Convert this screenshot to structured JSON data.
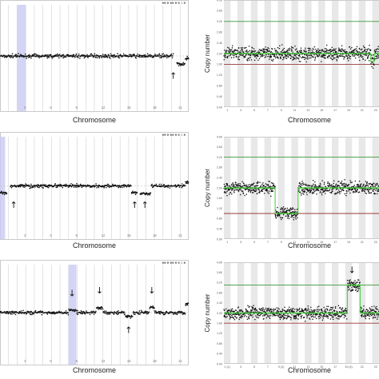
{
  "colors": {
    "grid": "#cfcfcf",
    "band": "#e8e8e8",
    "highlight": "#c9c9f2",
    "points": "#111111",
    "fit": "#3ad12f",
    "upper": "#3a9a3a",
    "lower": "#9a3a3a"
  },
  "chart_data": [
    {
      "type": "scatter",
      "panel": "top-left",
      "xlabel": "Chromosome",
      "corner_text": "■■ ■ ■■ ■ ■ 1 ■",
      "ylim": [
        0,
        4
      ],
      "baseline": 2,
      "chromosomes": 22,
      "highlight": [
        2,
        3
      ],
      "segments": [
        {
          "from": 0,
          "to": 20.2,
          "value": 2.0
        },
        {
          "from": 20.6,
          "to": 21.6,
          "value": 1.72
        },
        {
          "from": 21.6,
          "to": 22,
          "value": 1.9
        }
      ],
      "annotations": [
        {
          "glyph": "↑",
          "x": 20.2,
          "value": 1.3
        }
      ]
    },
    {
      "type": "scatter",
      "panel": "top-right",
      "xlabel": "Chromosome",
      "ylabel": "Copy number",
      "ylim": [
        0,
        4
      ],
      "upper_line": 3.2,
      "lower_line": 1.6,
      "yticks": [
        "4.00",
        "3.60",
        "3.20",
        "2.80",
        "2.40",
        "2.00",
        "1.60",
        "1.20",
        "0.80",
        "0.40",
        "0.00"
      ],
      "xticks": [
        "1",
        "3",
        "5",
        "7",
        "9",
        "11",
        "13",
        "15",
        "17",
        "19",
        "21",
        "23"
      ],
      "chromosomes": 23,
      "segments": [
        {
          "from": 0,
          "to": 21.8,
          "value": 2.0
        },
        {
          "from": 21.8,
          "to": 22.3,
          "value": 1.7
        },
        {
          "from": 22.3,
          "to": 23,
          "value": 2.0
        }
      ]
    },
    {
      "type": "scatter",
      "panel": "middle-left",
      "xlabel": "Chromosome",
      "corner_text": "■■ ■ ■■ ■ ■ 1 ■",
      "ylim": [
        0,
        4
      ],
      "baseline": 2,
      "chromosomes": 22,
      "highlight": [
        0,
        0.6
      ],
      "segments": [
        {
          "from": 0,
          "to": 0.8,
          "value": 1.75
        },
        {
          "from": 1.2,
          "to": 15.3,
          "value": 2.0
        },
        {
          "from": 15.3,
          "to": 16.0,
          "value": 1.76
        },
        {
          "from": 16.3,
          "to": 17.6,
          "value": 1.72
        },
        {
          "from": 17.6,
          "to": 21.6,
          "value": 2.0
        },
        {
          "from": 21.6,
          "to": 22,
          "value": 2.15
        }
      ],
      "annotations": [
        {
          "glyph": "↑",
          "x": 1.6,
          "value": 1.3
        },
        {
          "glyph": "↑",
          "x": 15.7,
          "value": 1.3
        },
        {
          "glyph": "↑",
          "x": 16.9,
          "value": 1.3
        }
      ]
    },
    {
      "type": "scatter",
      "panel": "middle-right",
      "xlabel": "Chromosome",
      "ylabel": "Copy number",
      "ylim": [
        0,
        4
      ],
      "upper_line": 3.2,
      "lower_line": 1.0,
      "yticks": [
        "4.00",
        "3.60",
        "3.20",
        "2.80",
        "2.40",
        "2.00",
        "1.60",
        "1.20",
        "0.80",
        "0.40",
        "0.00"
      ],
      "xticks": [
        "1",
        "3",
        "5",
        "7",
        "9",
        "11",
        "13",
        "15",
        "17",
        "19",
        "21",
        "23"
      ],
      "chromosomes": 23,
      "segments": [
        {
          "from": 0,
          "to": 7.6,
          "value": 2.0
        },
        {
          "from": 7.6,
          "to": 11.0,
          "value": 1.0
        },
        {
          "from": 11.0,
          "to": 23,
          "value": 2.0
        }
      ]
    },
    {
      "type": "scatter",
      "panel": "bottom-left",
      "xlabel": "Chromosome",
      "corner_text": "■■ ■ ■■ ■ ■ 1 ■",
      "ylim": [
        0,
        4
      ],
      "baseline": 2,
      "chromosomes": 22,
      "highlight": [
        8.0,
        8.9
      ],
      "segments": [
        {
          "from": 0,
          "to": 8.0,
          "value": 2.0
        },
        {
          "from": 8.0,
          "to": 8.9,
          "value": 2.1
        },
        {
          "from": 8.9,
          "to": 11.2,
          "value": 2.0
        },
        {
          "from": 11.2,
          "to": 12.0,
          "value": 2.18
        },
        {
          "from": 12.0,
          "to": 14.6,
          "value": 2.0
        },
        {
          "from": 14.6,
          "to": 15.5,
          "value": 1.85
        },
        {
          "from": 15.5,
          "to": 17.4,
          "value": 2.0
        },
        {
          "from": 17.4,
          "to": 18.0,
          "value": 2.2
        },
        {
          "from": 18.0,
          "to": 21.6,
          "value": 2.0
        },
        {
          "from": 21.6,
          "to": 22,
          "value": 2.35
        }
      ],
      "annotations": [
        {
          "glyph": "↓",
          "x": 8.4,
          "value": 2.75
        },
        {
          "glyph": "↓",
          "x": 11.6,
          "value": 2.85
        },
        {
          "glyph": "↓",
          "x": 17.7,
          "value": 2.85
        },
        {
          "glyph": "↑",
          "x": 15.0,
          "value": 1.35
        }
      ]
    },
    {
      "type": "scatter",
      "panel": "bottom-right",
      "xlabel": "Chromosome",
      "ylabel": "Copy number",
      "ylim": [
        0,
        4
      ],
      "upper_line": 3.1,
      "lower_line": 1.6,
      "yticks": [
        "4.00",
        "3.60",
        "3.20",
        "2.80",
        "2.40",
        "2.00",
        "1.60",
        "1.20",
        "0.80",
        "0.40",
        "0.00"
      ],
      "xticks": [
        "1 (1)",
        "3",
        "5",
        "7",
        "9 (2)",
        "11",
        "13",
        "15",
        "17",
        "19 (4)",
        "21",
        "23"
      ],
      "chromosomes": 23,
      "segments": [
        {
          "from": 0,
          "to": 18.3,
          "value": 2.0
        },
        {
          "from": 18.3,
          "to": 20.2,
          "value": 3.1
        },
        {
          "from": 20.2,
          "to": 23,
          "value": 2.0
        }
      ],
      "annotations": [
        {
          "glyph": "↓",
          "x": 19.0,
          "value": 3.7
        }
      ]
    }
  ]
}
